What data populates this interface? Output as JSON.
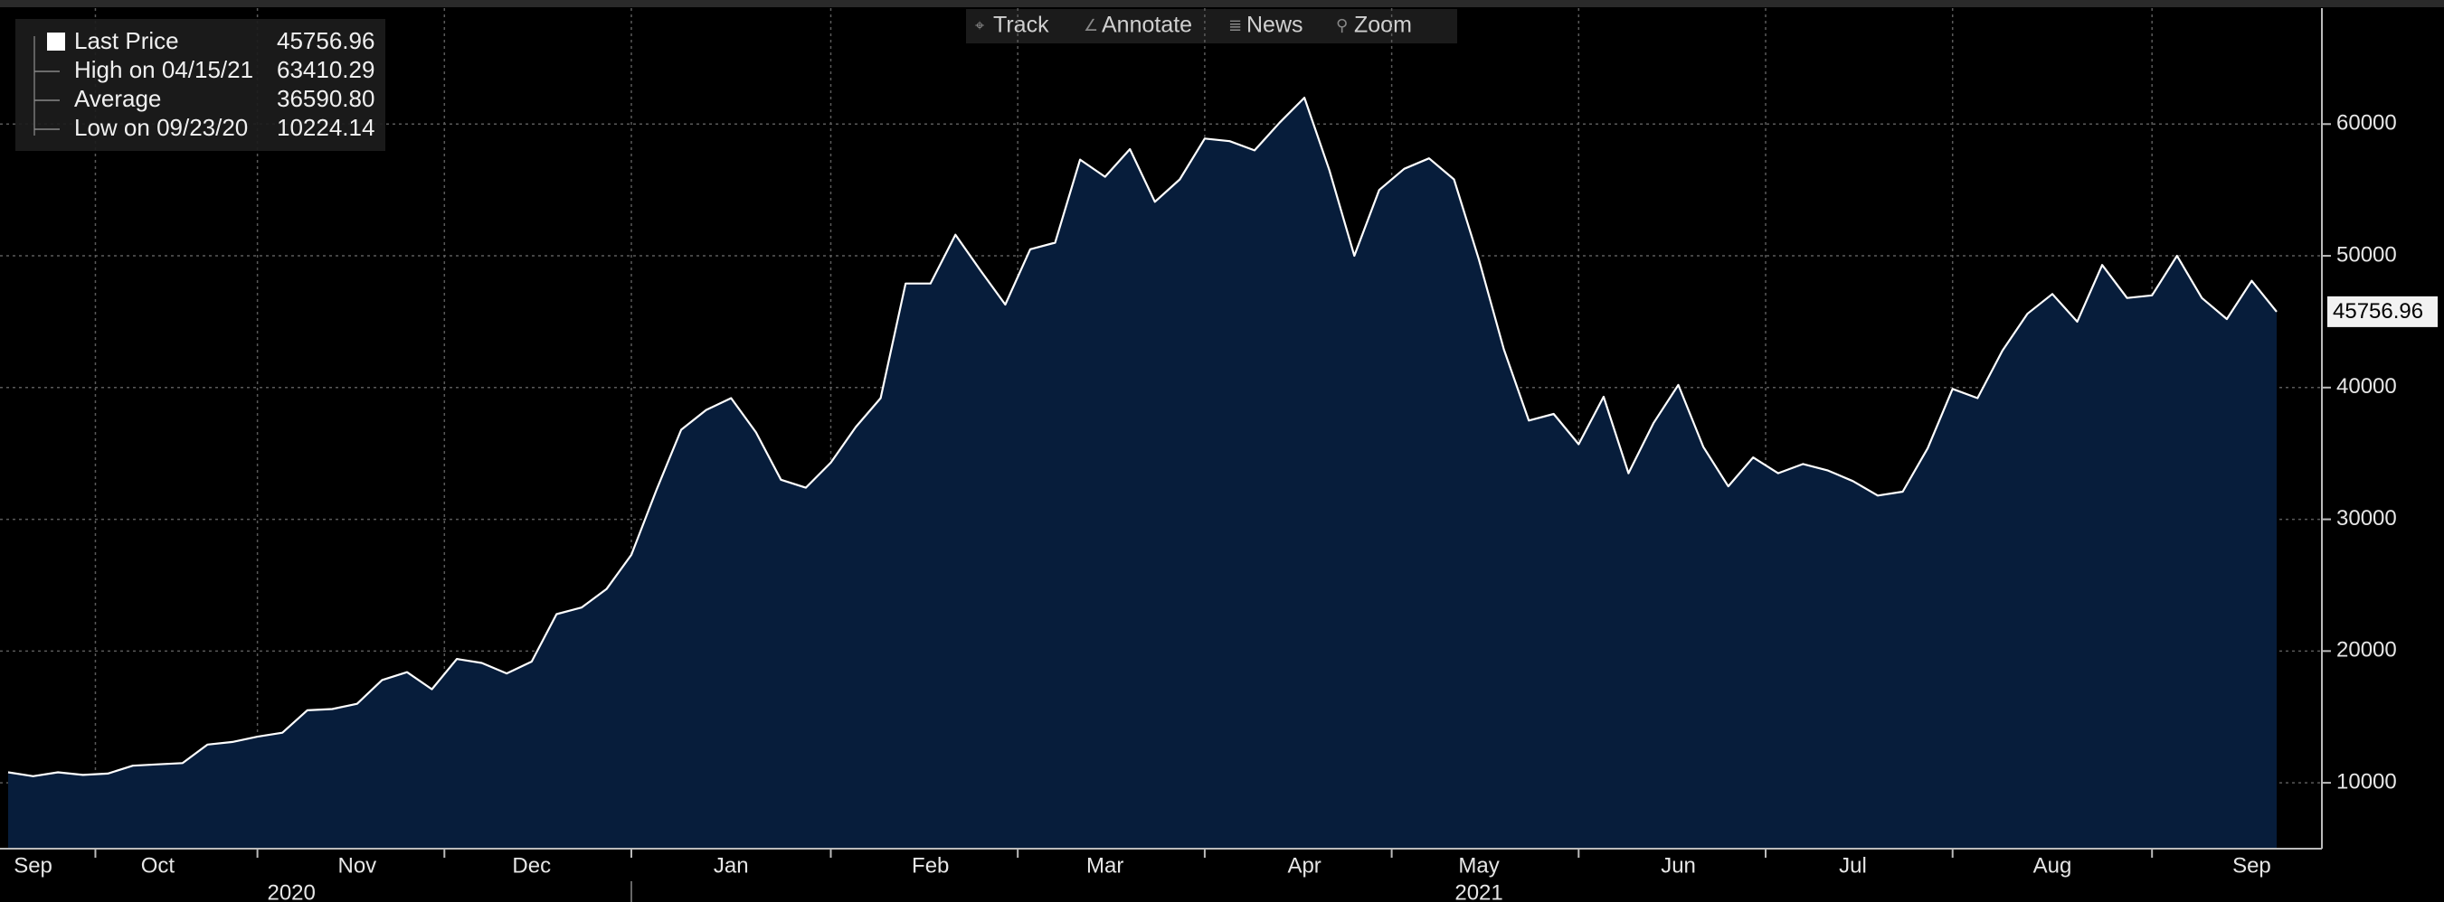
{
  "chart_data": {
    "type": "area",
    "toolbar": [
      "Track",
      "Annotate",
      "News",
      "Zoom"
    ],
    "stats": [
      {
        "name": "Last Price",
        "value": "45756.96"
      },
      {
        "name": "High on 04/15/21",
        "value": "63410.29"
      },
      {
        "name": "Average",
        "value": "36590.80"
      },
      {
        "name": "Low on 09/23/20",
        "value": "10224.14"
      }
    ],
    "categories": [
      null,
      "Sep",
      null,
      null,
      null,
      null,
      "Oct",
      null,
      null,
      null,
      null,
      null,
      null,
      null,
      "Nov",
      null,
      null,
      null,
      null,
      null,
      null,
      "Dec",
      null,
      null,
      null,
      null,
      null,
      null,
      null,
      "Jan",
      null,
      null,
      null,
      null,
      null,
      null,
      null,
      "Feb",
      null,
      null,
      null,
      null,
      null,
      null,
      "Mar",
      null,
      null,
      null,
      null,
      null,
      null,
      null,
      "Apr",
      null,
      null,
      null,
      null,
      null,
      null,
      "May",
      null,
      null,
      null,
      null,
      null,
      null,
      null,
      "Jun",
      null,
      null,
      null,
      null,
      null,
      null,
      "Jul",
      null,
      null,
      null,
      null,
      null,
      null,
      null,
      "Aug",
      null,
      null,
      null,
      null,
      null,
      null,
      null,
      "Sep",
      null
    ],
    "year_labels": [
      "2020",
      "2021"
    ],
    "series": [
      {
        "name": "Last Price",
        "color": "#ffffff",
        "fill": "#071d3b",
        "values": [
          10800,
          10500,
          10800,
          10600,
          10700,
          11300,
          11400,
          11500,
          12900,
          13100,
          13500,
          13800,
          15500,
          15600,
          16000,
          17800,
          18400,
          17100,
          19400,
          19100,
          18300,
          19200,
          22800,
          23300,
          24700,
          27300,
          32200,
          36800,
          38300,
          39200,
          36600,
          33000,
          32400,
          34300,
          37000,
          39200,
          47900,
          47900,
          51600,
          48900,
          46300,
          50500,
          51000,
          57300,
          56000,
          58100,
          54100,
          55800,
          58900,
          58700,
          58000,
          60100,
          62000,
          56500,
          50000,
          55000,
          56600,
          57400,
          55800,
          49700,
          42900,
          37500,
          38000,
          35700,
          39300,
          33500,
          37300,
          40200,
          35500,
          32500,
          34700,
          33500,
          34200,
          33700,
          32900,
          31800,
          32100,
          35400,
          39900,
          39200,
          42800,
          45600,
          47100,
          45000,
          49300,
          46800,
          47000,
          50000,
          46800,
          45200,
          48100,
          45756.96
        ]
      }
    ],
    "ylim": [
      5000,
      68800
    ],
    "yticks": [
      10000,
      20000,
      30000,
      40000,
      50000,
      60000
    ],
    "grid": true
  }
}
